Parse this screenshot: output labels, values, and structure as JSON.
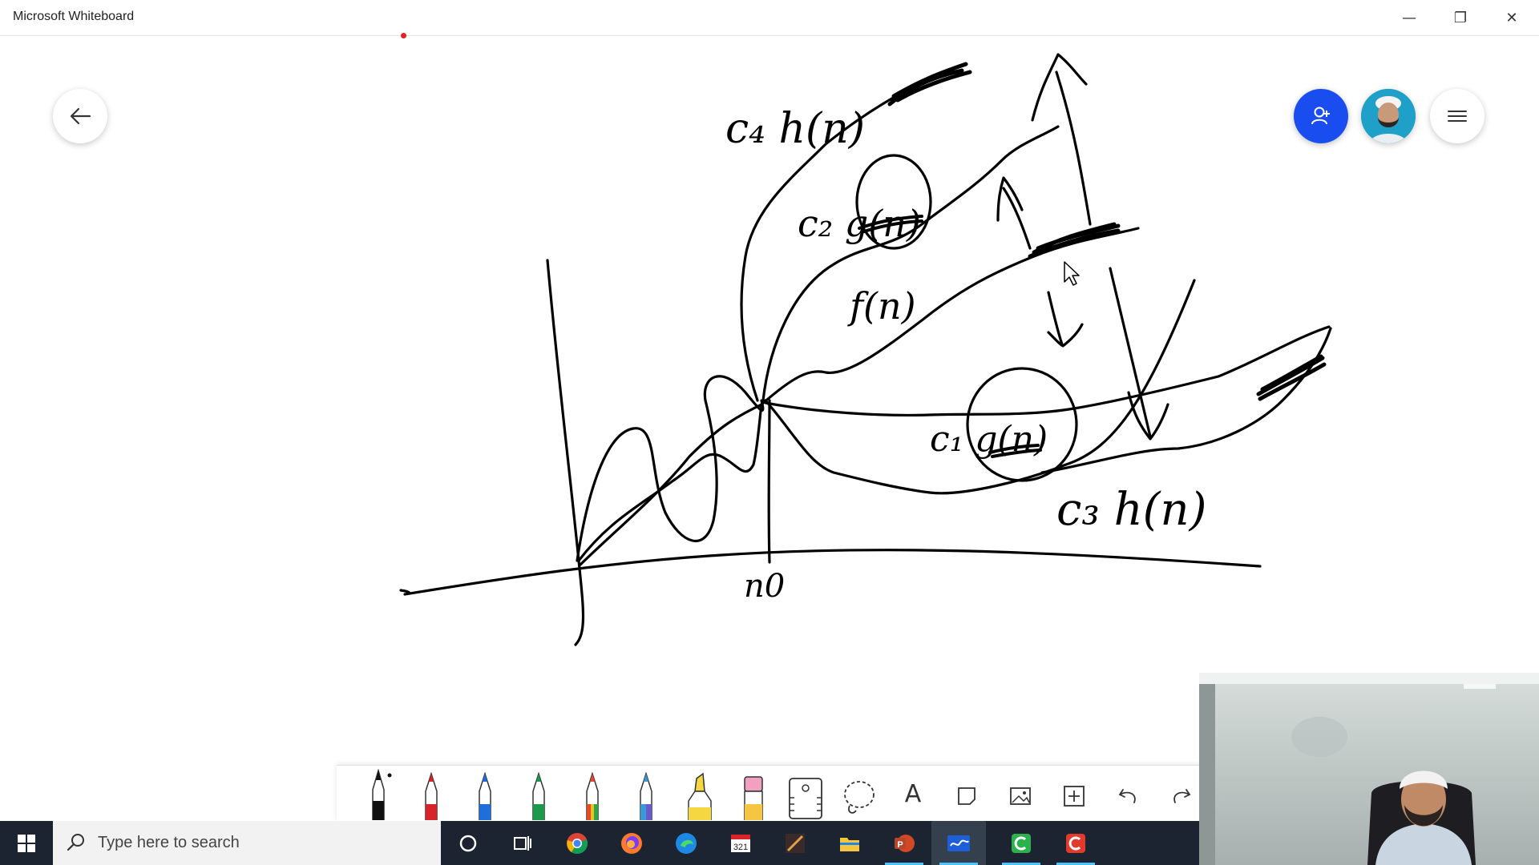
{
  "window": {
    "title": "Microsoft Whiteboard",
    "controls": {
      "minimize": "—",
      "restore": "❐",
      "close": "✕"
    }
  },
  "icons": {
    "back": "arrow-left-icon",
    "share": "invite-person-icon",
    "avatar": "user-avatar",
    "menu": "hamburger-menu-icon"
  },
  "whiteboard": {
    "labels": {
      "c4": "c₄ h(n)",
      "c2": "c₂ g(n)",
      "f": "f(n)",
      "c1": "c₁ g(n)",
      "c3": "c₃ h(n)",
      "n0": "n0"
    },
    "ink_color": "#000000"
  },
  "toolbar": {
    "tools": [
      {
        "name": "pen-black",
        "color": "#111111"
      },
      {
        "name": "pen-red",
        "color": "#d8232a"
      },
      {
        "name": "pen-blue",
        "color": "#1e6fd9"
      },
      {
        "name": "pen-green",
        "color": "#1a9a4a"
      },
      {
        "name": "pen-rainbow",
        "color": "#e14a2a"
      },
      {
        "name": "pen-galaxy",
        "color": "#6a5acd"
      },
      {
        "name": "highlighter",
        "color": "#f5d742"
      },
      {
        "name": "eraser",
        "color": "#f2a0c0"
      }
    ],
    "text_tool": "A"
  },
  "taskbar": {
    "search_placeholder": "Type here to search",
    "apps": [
      "cortana-icon",
      "task-view-icon",
      "chrome-icon",
      "firefox-icon",
      "edge-icon",
      "calendar-icon",
      "snip-icon",
      "file-explorer-icon",
      "powerpoint-icon",
      "whiteboard-icon",
      "camtasia-green-icon",
      "camtasia-red-icon"
    ]
  },
  "colors": {
    "share_button": "#1a4df0",
    "taskbar": "#1b2430",
    "taskbar_search": "#f2f2f2",
    "active_indicator": "#4cc2ff"
  }
}
